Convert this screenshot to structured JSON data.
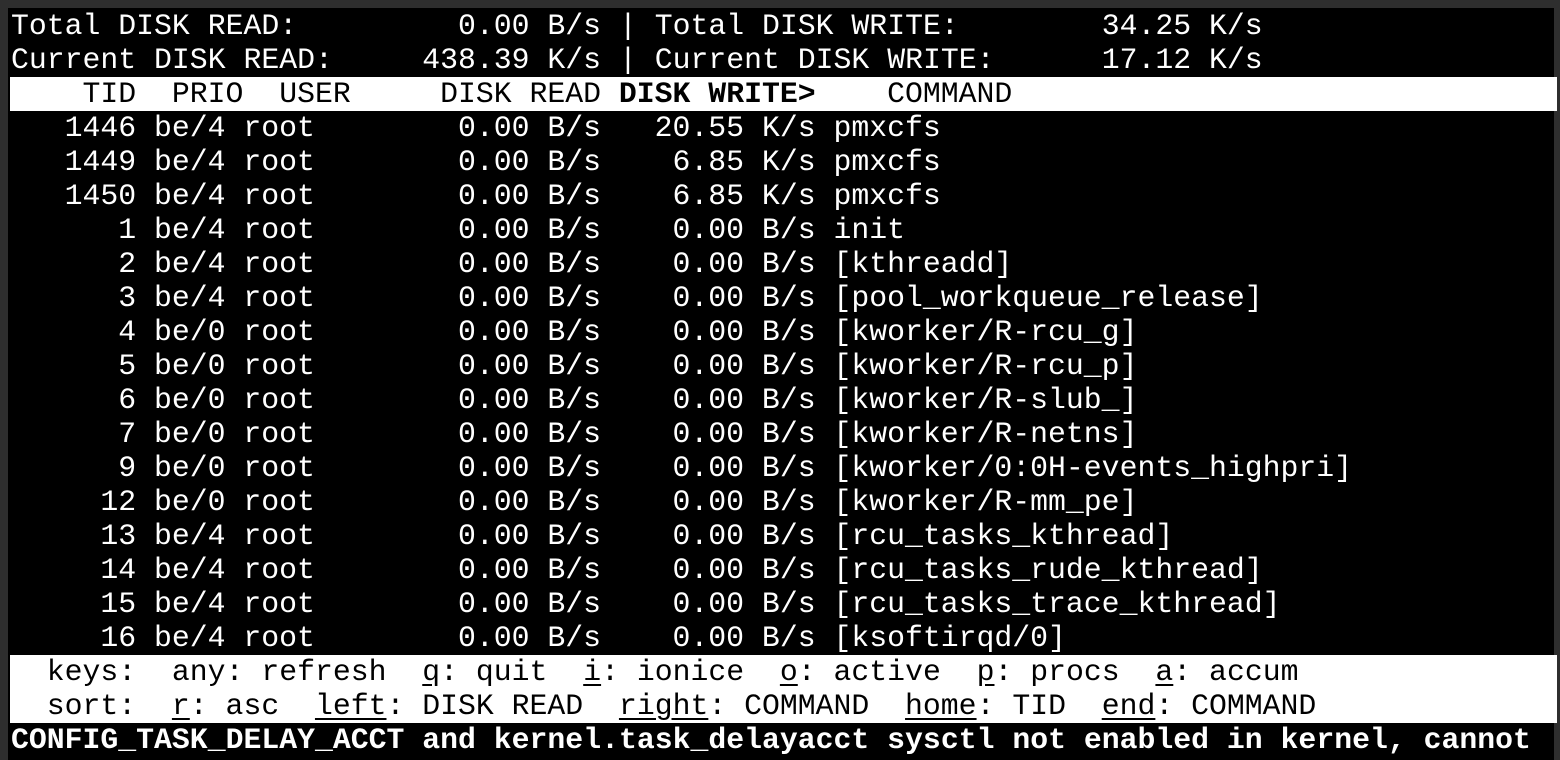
{
  "summary": {
    "total_read_label": "Total DISK READ:",
    "total_read_value": "0.00 B/s",
    "total_write_label": "Total DISK WRITE:",
    "total_write_value": "34.25 K/s",
    "current_read_label": "Current DISK READ:",
    "current_read_value": "438.39 K/s",
    "current_write_label": "Current DISK WRITE:",
    "current_write_value": "17.12 K/s",
    "separator": "|"
  },
  "header": {
    "tid": "TID",
    "prio": "PRIO",
    "user": "USER",
    "disk_read": "DISK READ",
    "disk_write": "DISK WRITE>",
    "command": "COMMAND"
  },
  "rows": [
    {
      "tid": "1446",
      "prio": "be/4",
      "user": "root",
      "read": "0.00 B/s",
      "write": "20.55 K/s",
      "command": "pmxcfs"
    },
    {
      "tid": "1449",
      "prio": "be/4",
      "user": "root",
      "read": "0.00 B/s",
      "write": "6.85 K/s",
      "command": "pmxcfs"
    },
    {
      "tid": "1450",
      "prio": "be/4",
      "user": "root",
      "read": "0.00 B/s",
      "write": "6.85 K/s",
      "command": "pmxcfs"
    },
    {
      "tid": "1",
      "prio": "be/4",
      "user": "root",
      "read": "0.00 B/s",
      "write": "0.00 B/s",
      "command": "init"
    },
    {
      "tid": "2",
      "prio": "be/4",
      "user": "root",
      "read": "0.00 B/s",
      "write": "0.00 B/s",
      "command": "[kthreadd]"
    },
    {
      "tid": "3",
      "prio": "be/4",
      "user": "root",
      "read": "0.00 B/s",
      "write": "0.00 B/s",
      "command": "[pool_workqueue_release]"
    },
    {
      "tid": "4",
      "prio": "be/0",
      "user": "root",
      "read": "0.00 B/s",
      "write": "0.00 B/s",
      "command": "[kworker/R-rcu_g]"
    },
    {
      "tid": "5",
      "prio": "be/0",
      "user": "root",
      "read": "0.00 B/s",
      "write": "0.00 B/s",
      "command": "[kworker/R-rcu_p]"
    },
    {
      "tid": "6",
      "prio": "be/0",
      "user": "root",
      "read": "0.00 B/s",
      "write": "0.00 B/s",
      "command": "[kworker/R-slub_]"
    },
    {
      "tid": "7",
      "prio": "be/0",
      "user": "root",
      "read": "0.00 B/s",
      "write": "0.00 B/s",
      "command": "[kworker/R-netns]"
    },
    {
      "tid": "9",
      "prio": "be/0",
      "user": "root",
      "read": "0.00 B/s",
      "write": "0.00 B/s",
      "command": "[kworker/0:0H-events_highpri]"
    },
    {
      "tid": "12",
      "prio": "be/0",
      "user": "root",
      "read": "0.00 B/s",
      "write": "0.00 B/s",
      "command": "[kworker/R-mm_pe]"
    },
    {
      "tid": "13",
      "prio": "be/4",
      "user": "root",
      "read": "0.00 B/s",
      "write": "0.00 B/s",
      "command": "[rcu_tasks_kthread]"
    },
    {
      "tid": "14",
      "prio": "be/4",
      "user": "root",
      "read": "0.00 B/s",
      "write": "0.00 B/s",
      "command": "[rcu_tasks_rude_kthread]"
    },
    {
      "tid": "15",
      "prio": "be/4",
      "user": "root",
      "read": "0.00 B/s",
      "write": "0.00 B/s",
      "command": "[rcu_tasks_trace_kthread]"
    },
    {
      "tid": "16",
      "prio": "be/4",
      "user": "root",
      "read": "0.00 B/s",
      "write": "0.00 B/s",
      "command": "[ksoftirqd/0]"
    }
  ],
  "keys": {
    "label": "keys:",
    "items": [
      {
        "key": "any",
        "desc": ": refresh",
        "underline": false
      },
      {
        "key": "q",
        "desc": ": quit",
        "underline": true
      },
      {
        "key": "i",
        "desc": ": ionice",
        "underline": true
      },
      {
        "key": "o",
        "desc": ": active",
        "underline": true
      },
      {
        "key": "p",
        "desc": ": procs",
        "underline": true
      },
      {
        "key": "a",
        "desc": ": accum",
        "underline": true
      }
    ]
  },
  "sort": {
    "label": "sort:",
    "items": [
      {
        "key": "r",
        "desc": ": asc",
        "underline": true
      },
      {
        "key": "left",
        "desc": ": DISK READ",
        "underline": true
      },
      {
        "key": "right",
        "desc": ": COMMAND",
        "underline": true
      },
      {
        "key": "home",
        "desc": ": TID",
        "underline": true
      },
      {
        "key": "end",
        "desc": ": COMMAND",
        "underline": true
      }
    ]
  },
  "warning": "CONFIG_TASK_DELAY_ACCT and kernel.task_delayacct sysctl not enabled in kernel, cannot",
  "colors": {
    "background": "#000000",
    "foreground": "#ffffff",
    "window_frame": "#2e2e2e"
  }
}
